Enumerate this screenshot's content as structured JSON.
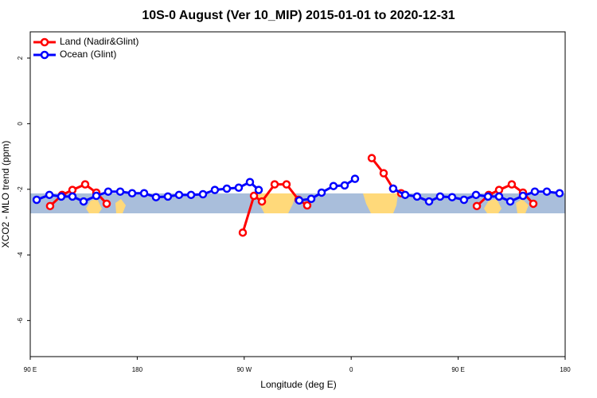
{
  "chart_data": {
    "type": "line",
    "title": "10S-0 August (Ver 10_MIP)   2015-01-01 to 2020-12-31",
    "xlabel": "Longitude (deg E)",
    "ylabel": "XCO2 - MLO trend (ppm)",
    "xlim": [
      90,
      540
    ],
    "ylim": [
      -7.1,
      2.8
    ],
    "xticks": [
      {
        "value": 90,
        "label": "90 E"
      },
      180,
      {
        "value": 270,
        "label": "90 W"
      },
      {
        "value": 360,
        "label": "0"
      },
      {
        "value": 450,
        "label": "90 E"
      },
      {
        "value": 540,
        "label": "180"
      }
    ],
    "yticks": [
      -6,
      -4,
      -2,
      0,
      2
    ],
    "legend": "top-left",
    "series": [
      {
        "name": "Land (Nadir&Glint)",
        "color": "#ff0000",
        "x": [
          106.7,
          116.8,
          125.5,
          136.2,
          145.6,
          154.3,
          null,
          268.8,
          278.2,
          284.9,
          295.6,
          305.6,
          315.7,
          323.0,
          null,
          377.3,
          387.3,
          395.3,
          402.0,
          null,
          465.7,
          475.7,
          484.4,
          495.1,
          504.5,
          513.2
        ],
        "values": [
          -2.51,
          -2.17,
          -2.02,
          -1.85,
          -2.1,
          -2.44,
          null,
          -3.32,
          -2.2,
          -2.37,
          -1.85,
          -1.85,
          -2.32,
          -2.49,
          null,
          -1.05,
          -1.51,
          -1.98,
          -2.12,
          null,
          -2.51,
          -2.17,
          -2.02,
          -1.85,
          -2.1,
          -2.44
        ]
      },
      {
        "name": "Ocean (Glint)",
        "color": "#0000ff",
        "x": [
          95.4,
          106.1,
          116.1,
          125.5,
          134.9,
          145.6,
          155.6,
          165.7,
          175.7,
          185.8,
          195.8,
          205.8,
          215.2,
          225.3,
          235.3,
          245.3,
          255.4,
          265.4,
          274.8,
          282.2,
          null,
          316.3,
          326.4,
          335.1,
          345.1,
          354.5,
          363.2,
          null,
          395.3,
          405.4,
          415.4,
          425.5,
          434.8,
          444.9,
          454.9,
          465.0,
          475.1,
          484.4,
          493.8,
          504.5,
          514.5,
          524.6,
          535.3
        ],
        "values": [
          -2.32,
          -2.17,
          -2.22,
          -2.22,
          -2.37,
          -2.2,
          -2.07,
          -2.07,
          -2.12,
          -2.12,
          -2.24,
          -2.22,
          -2.17,
          -2.17,
          -2.15,
          -2.02,
          -1.98,
          -1.95,
          -1.78,
          -2.02,
          null,
          -2.34,
          -2.29,
          -2.1,
          -1.9,
          -1.88,
          -1.68,
          null,
          -1.98,
          -2.17,
          -2.22,
          -2.37,
          -2.22,
          -2.24,
          -2.32,
          -2.17,
          -2.22,
          -2.22,
          -2.37,
          -2.2,
          -2.07,
          -2.07,
          -2.12
        ]
      }
    ]
  }
}
